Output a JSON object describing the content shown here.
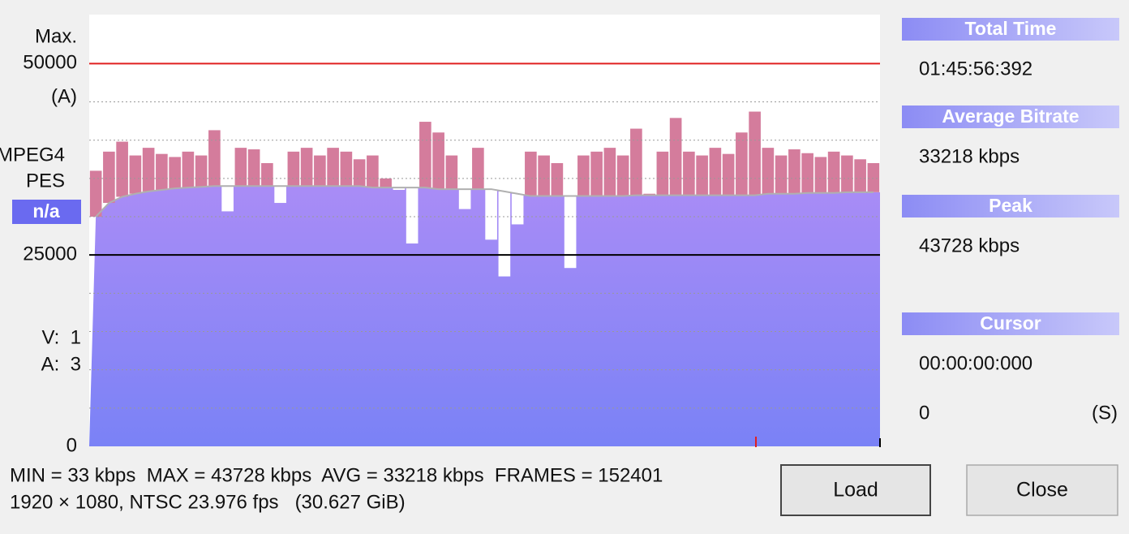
{
  "chart_data": {
    "type": "bar",
    "ylim": [
      0,
      56400
    ],
    "yticks": [
      0,
      25000,
      50000
    ],
    "grid_values": [
      5000,
      10000,
      15000,
      20000,
      30000,
      35000,
      40000,
      45000
    ],
    "reference_lines": [
      {
        "value": 50000,
        "color": "#e02020"
      },
      {
        "value": 25000,
        "color": "#000000"
      }
    ],
    "color": "#d47c9c",
    "fill_color": "#9a8af7",
    "average_color": "#b0b0b0",
    "values": [
      36000,
      38500,
      39800,
      38000,
      39000,
      38200,
      37800,
      38500,
      38000,
      41300,
      30700,
      39000,
      38800,
      37000,
      31800,
      38500,
      39000,
      38000,
      39000,
      38500,
      37500,
      38000,
      35000,
      33500,
      26500,
      42400,
      41000,
      38000,
      31000,
      39000,
      27000,
      22200,
      29000,
      38500,
      38000,
      37000,
      23300,
      38000,
      38500,
      39000,
      38000,
      41500,
      33000,
      38500,
      42900,
      38500,
      38000,
      39000,
      38200,
      41000,
      43728,
      39000,
      38000,
      38800,
      38300,
      37800,
      38500,
      38000,
      37500,
      37000
    ],
    "average": [
      30000,
      31800,
      32600,
      33000,
      33300,
      33500,
      33700,
      33800,
      33900,
      34000,
      34000,
      34000,
      34000,
      34000,
      34000,
      34000,
      34000,
      34000,
      34000,
      34000,
      34000,
      33800,
      33800,
      33800,
      33800,
      33800,
      33600,
      33600,
      33600,
      33600,
      33600,
      33300,
      33000,
      32700,
      32700,
      32700,
      32700,
      32700,
      32700,
      32700,
      32700,
      32800,
      32800,
      32800,
      32800,
      32800,
      32800,
      32800,
      32800,
      32800,
      32800,
      33000,
      33000,
      33000,
      33100,
      33100,
      33100,
      33200,
      33200,
      33200
    ]
  },
  "side_labels": {
    "max": "Max.",
    "unit": "(A)",
    "format": [
      "MPEG4",
      "PES"
    ],
    "status": "n/a",
    "streams": [
      "V:  1",
      "A:  3"
    ]
  },
  "info": [
    {
      "header": "Total Time",
      "value": "01:45:56:392"
    },
    {
      "header": "Average Bitrate",
      "value": "33218 kbps"
    },
    {
      "header": "Peak",
      "value": "43728 kbps"
    },
    {
      "header": "Cursor",
      "value": "00:00:00:000"
    }
  ],
  "cursor_position": "0",
  "cursor_unit": "(S)",
  "stats": [
    "MIN = 33 kbps  MAX = 43728 kbps  AVG = 33218 kbps  FRAMES = 152401",
    "1920 × 1080, NTSC 23.976 fps   (30.627 GiB)"
  ],
  "buttons": [
    "Load",
    "Close"
  ]
}
